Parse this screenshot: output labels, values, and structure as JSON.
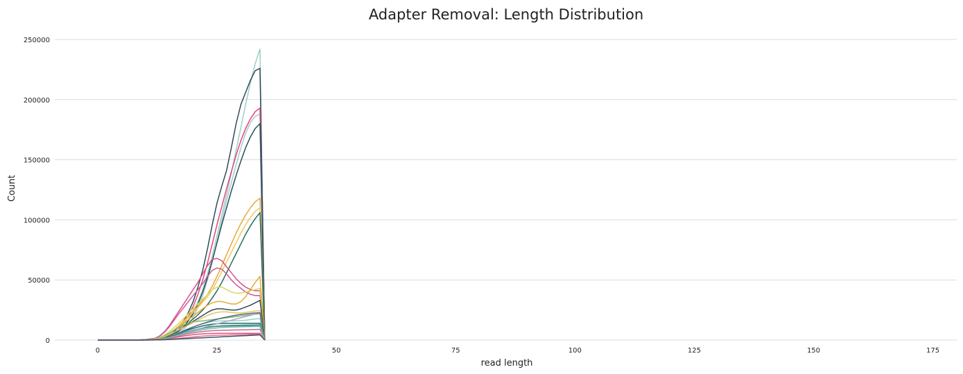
{
  "chart_data": {
    "type": "line",
    "title": "Adapter Removal: Length Distribution",
    "xlabel": "read length",
    "ylabel": "Count",
    "xlim": [
      -9,
      180
    ],
    "ylim": [
      0,
      250000
    ],
    "x_ticks": [
      0,
      25,
      50,
      75,
      100,
      125,
      150,
      175
    ],
    "y_ticks": [
      0,
      50000,
      100000,
      150000,
      200000,
      250000
    ],
    "grid": "horizontal",
    "legend": "none",
    "series_x": [
      0,
      2,
      4,
      6,
      8,
      10,
      12,
      13,
      14,
      15,
      16,
      17,
      18,
      19,
      20,
      21,
      22,
      23,
      24,
      25,
      26,
      27,
      28,
      29,
      30,
      31,
      32,
      33,
      34,
      35
    ],
    "series": [
      {
        "color": "#9fcfc0",
        "values": [
          0,
          0,
          0,
          0,
          0,
          200,
          800,
          1500,
          2500,
          4000,
          6000,
          8500,
          12000,
          17000,
          24000,
          32000,
          42000,
          55000,
          70000,
          87000,
          104000,
          121000,
          139000,
          158000,
          177000,
          196000,
          214000,
          230000,
          242000,
          0
        ]
      },
      {
        "color": "#2e4a5a",
        "values": [
          0,
          0,
          0,
          0,
          0,
          100,
          500,
          1000,
          2000,
          4000,
          7000,
          11000,
          16000,
          23000,
          32000,
          44000,
          58000,
          76000,
          96000,
          114000,
          128000,
          141000,
          160000,
          180000,
          196000,
          206000,
          216000,
          224000,
          226000,
          0
        ]
      },
      {
        "color": "#a8c8d0",
        "values": [
          0,
          0,
          0,
          0,
          0,
          100,
          300,
          600,
          1200,
          2200,
          3800,
          6000,
          9000,
          13000,
          19000,
          27000,
          37000,
          50000,
          65000,
          82000,
          99000,
          116000,
          131000,
          146000,
          160000,
          172000,
          181000,
          186000,
          188000,
          0
        ]
      },
      {
        "color": "#e0457b",
        "values": [
          0,
          0,
          0,
          0,
          0,
          100,
          400,
          800,
          1500,
          3000,
          5500,
          9000,
          14000,
          20000,
          28000,
          38000,
          50000,
          64000,
          80000,
          96000,
          111000,
          126000,
          140000,
          154000,
          166000,
          176000,
          184000,
          190000,
          193000,
          0
        ]
      },
      {
        "color": "#23505a",
        "values": [
          0,
          0,
          0,
          0,
          0,
          100,
          400,
          800,
          1500,
          2800,
          4800,
          7500,
          11000,
          16000,
          22000,
          30000,
          40000,
          52000,
          66000,
          81000,
          96000,
          110000,
          124000,
          137000,
          149000,
          160000,
          169000,
          176000,
          180000,
          0
        ]
      },
      {
        "color": "#e8a838",
        "values": [
          0,
          0,
          0,
          0,
          0,
          200,
          700,
          1500,
          3000,
          5500,
          8500,
          12000,
          16000,
          20000,
          24000,
          28000,
          33000,
          38000,
          45000,
          53000,
          62000,
          71000,
          80000,
          89000,
          97000,
          104000,
          110000,
          115000,
          118000,
          0
        ]
      },
      {
        "color": "#f0c860",
        "values": [
          0,
          0,
          0,
          0,
          0,
          200,
          700,
          1400,
          2800,
          5000,
          8000,
          11500,
          15000,
          19000,
          23000,
          27000,
          31500,
          36000,
          42000,
          49000,
          57000,
          65000,
          73000,
          81000,
          89000,
          96000,
          102000,
          107000,
          110000,
          0
        ]
      },
      {
        "color": "#2a6a5a",
        "values": [
          0,
          0,
          0,
          0,
          0,
          100,
          500,
          1000,
          2000,
          3500,
          5500,
          8000,
          11000,
          14000,
          17500,
          21000,
          25000,
          29500,
          35000,
          41000,
          48000,
          56000,
          64000,
          72000,
          80000,
          88000,
          95000,
          101000,
          106000,
          0
        ]
      },
      {
        "color": "#d94f8a",
        "values": [
          0,
          0,
          0,
          0,
          0,
          400,
          1500,
          3500,
          7000,
          12000,
          18000,
          24000,
          30000,
          36000,
          42000,
          48000,
          55000,
          62000,
          67000,
          68000,
          66000,
          61000,
          56000,
          51000,
          47000,
          44000,
          42000,
          41000,
          41000,
          0
        ]
      },
      {
        "color": "#c85a9a",
        "values": [
          0,
          0,
          0,
          0,
          0,
          400,
          1400,
          3200,
          6500,
          11000,
          16500,
          22000,
          27000,
          32000,
          37000,
          42000,
          47000,
          53000,
          58000,
          60000,
          59000,
          55000,
          50000,
          46000,
          43000,
          40000,
          38000,
          37000,
          37000,
          0
        ]
      },
      {
        "color": "#d8d860",
        "values": [
          0,
          0,
          0,
          0,
          0,
          300,
          1000,
          2200,
          4200,
          7000,
          10500,
          14000,
          18000,
          22000,
          26000,
          30000,
          34000,
          38000,
          42000,
          44000,
          44000,
          42000,
          40000,
          39000,
          39000,
          40000,
          41000,
          42000,
          43000,
          0
        ]
      },
      {
        "color": "#e8a838",
        "values": [
          0,
          0,
          0,
          0,
          0,
          200,
          800,
          1700,
          3300,
          5600,
          8200,
          11000,
          14000,
          17000,
          20000,
          23000,
          26000,
          29000,
          31000,
          32000,
          32000,
          31000,
          30000,
          30000,
          32000,
          36000,
          42000,
          48000,
          53000,
          0
        ]
      },
      {
        "color": "#2e4a5a",
        "values": [
          0,
          0,
          0,
          0,
          0,
          100,
          500,
          1100,
          2200,
          3800,
          5800,
          8000,
          10500,
          13000,
          15500,
          18000,
          20500,
          23000,
          25000,
          26000,
          26000,
          25500,
          25000,
          25000,
          26000,
          27500,
          29000,
          31000,
          33000,
          0
        ]
      },
      {
        "color": "#7ab87a",
        "values": [
          0,
          0,
          0,
          0,
          0,
          200,
          800,
          1800,
          3500,
          5800,
          8200,
          10500,
          12500,
          14000,
          15000,
          15500,
          16000,
          16500,
          17000,
          17500,
          18000,
          18500,
          19000,
          19500,
          20000,
          20500,
          21000,
          21500,
          22000,
          0
        ]
      },
      {
        "color": "#98d0c8",
        "values": [
          0,
          0,
          0,
          0,
          0,
          100,
          400,
          900,
          1800,
          3000,
          4600,
          6300,
          8000,
          9600,
          11000,
          12300,
          13500,
          14500,
          15300,
          15800,
          16000,
          16000,
          16000,
          16000,
          16200,
          16500,
          17000,
          17500,
          18000,
          0
        ]
      },
      {
        "color": "#1e6a6a",
        "values": [
          0,
          0,
          0,
          0,
          0,
          100,
          400,
          800,
          1600,
          2700,
          4000,
          5500,
          7000,
          8400,
          9700,
          10800,
          11800,
          12600,
          13200,
          13600,
          13800,
          13900,
          14000,
          14000,
          14000,
          14000,
          14000,
          14000,
          14000,
          0
        ]
      },
      {
        "color": "#e8c068",
        "values": [
          0,
          0,
          0,
          0,
          0,
          200,
          700,
          1500,
          2800,
          4500,
          6500,
          8500,
          10500,
          12500,
          14500,
          16500,
          18500,
          20500,
          22000,
          23000,
          23500,
          23500,
          23000,
          22500,
          22500,
          23000,
          23500,
          24000,
          24500,
          0
        ]
      },
      {
        "color": "#5aa0b8",
        "values": [
          0,
          0,
          0,
          0,
          0,
          100,
          300,
          700,
          1300,
          2200,
          3400,
          4700,
          6000,
          7200,
          8300,
          9200,
          10000,
          10700,
          11200,
          11600,
          11900,
          12100,
          12200,
          12300,
          12400,
          12500,
          12600,
          12700,
          12800,
          0
        ]
      },
      {
        "color": "#c06a9a",
        "values": [
          0,
          0,
          0,
          0,
          0,
          100,
          300,
          600,
          1100,
          1800,
          2700,
          3600,
          4500,
          5300,
          6000,
          6600,
          7100,
          7500,
          7800,
          8000,
          8100,
          8200,
          8300,
          8400,
          8500,
          8600,
          8700,
          8800,
          8900,
          0
        ]
      },
      {
        "color": "#e05080",
        "values": [
          0,
          0,
          0,
          0,
          0,
          100,
          200,
          400,
          800,
          1300,
          2000,
          2700,
          3400,
          4000,
          4500,
          4900,
          5200,
          5400,
          5500,
          5600,
          5600,
          5600,
          5600,
          5600,
          5600,
          5600,
          5600,
          5600,
          5600,
          0
        ]
      },
      {
        "color": "#3a8a7a",
        "values": [
          0,
          0,
          0,
          0,
          0,
          100,
          300,
          700,
          1300,
          2100,
          3200,
          4400,
          5600,
          6800,
          7900,
          8900,
          9800,
          10500,
          11000,
          11400,
          11600,
          11700,
          11800,
          11800,
          11800,
          11800,
          11800,
          11800,
          11800,
          0
        ]
      },
      {
        "color": "#a8a8c8",
        "values": [
          0,
          0,
          0,
          0,
          0,
          100,
          300,
          700,
          1300,
          2100,
          3100,
          4200,
          5400,
          6600,
          7800,
          9000,
          10200,
          11400,
          12500,
          13500,
          14500,
          15500,
          16500,
          17500,
          18500,
          19500,
          20500,
          21500,
          22000,
          0
        ]
      },
      {
        "color": "#506878",
        "values": [
          0,
          0,
          0,
          0,
          0,
          100,
          400,
          900,
          1700,
          2800,
          4200,
          5800,
          7500,
          9200,
          10800,
          12300,
          13700,
          15000,
          16200,
          17300,
          18300,
          19200,
          20000,
          20700,
          21300,
          21800,
          22200,
          22500,
          22700,
          0
        ]
      },
      {
        "color": "#78c0a0",
        "values": [
          0,
          0,
          0,
          0,
          0,
          100,
          300,
          600,
          1200,
          2000,
          3000,
          4100,
          5200,
          6200,
          7100,
          7900,
          8600,
          9200,
          9700,
          10100,
          10400,
          10600,
          10800,
          10900,
          11000,
          11100,
          11200,
          11300,
          11400,
          0
        ]
      },
      {
        "color": "#e07090",
        "values": [
          0,
          0,
          0,
          0,
          0,
          0,
          100,
          200,
          400,
          700,
          1000,
          1400,
          1800,
          2200,
          2600,
          3000,
          3300,
          3600,
          3800,
          4000,
          4100,
          4200,
          4300,
          4400,
          4500,
          4600,
          4700,
          4800,
          4900,
          0
        ]
      },
      {
        "color": "#405060",
        "values": [
          0,
          0,
          0,
          0,
          0,
          0,
          100,
          200,
          300,
          500,
          700,
          900,
          1100,
          1300,
          1500,
          1700,
          1900,
          2100,
          2300,
          2500,
          2700,
          2900,
          3100,
          3300,
          3500,
          3700,
          3900,
          4100,
          4300,
          0
        ]
      }
    ]
  }
}
